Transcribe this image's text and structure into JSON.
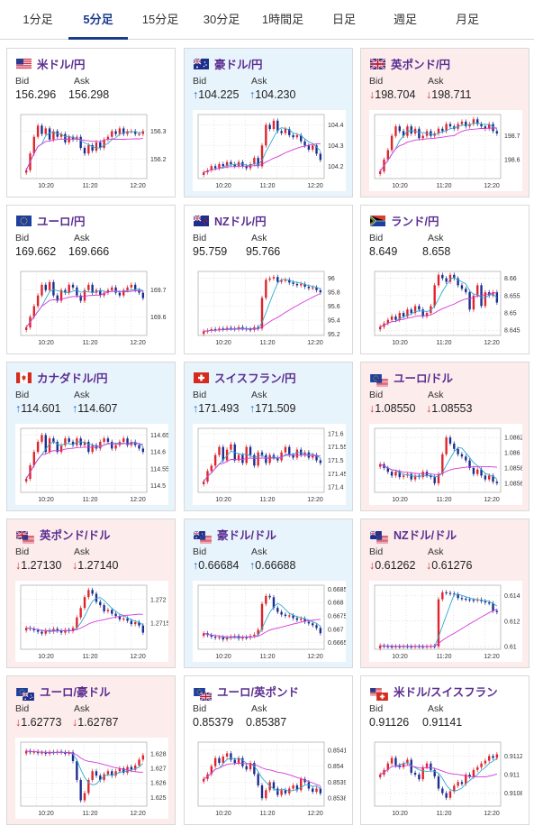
{
  "tabs": [
    {
      "label": "1分足",
      "active": false
    },
    {
      "label": "5分足",
      "active": true
    },
    {
      "label": "15分足",
      "active": false
    },
    {
      "label": "30分足",
      "active": false
    },
    {
      "label": "1時間足",
      "active": false
    },
    {
      "label": "日足",
      "active": false
    },
    {
      "label": "週足",
      "active": false
    },
    {
      "label": "月足",
      "active": false
    }
  ],
  "labels": {
    "bid": "Bid",
    "ask": "Ask"
  },
  "colors": {
    "title": "#5b2d91",
    "up": "#1a6fd0",
    "down": "#d0332b",
    "candle_up": "#e0242b",
    "candle_down": "#1b2d8f",
    "ma_short": "#2eaad0",
    "ma_long": "#d43ad8",
    "tab_active": "#1a3c8c"
  },
  "cards": [
    {
      "name": "米ドル/円",
      "flags": [
        "us"
      ],
      "direction": "none",
      "bid": "156.296",
      "ask": "156.298",
      "chart_data": {
        "type": "candlestick",
        "x_ticks": [
          "10:20",
          "11:20",
          "12:20"
        ],
        "y_ticks": [
          "156.3",
          "156.2"
        ],
        "ylim": [
          156.13,
          156.36
        ],
        "closes": [
          156.16,
          156.22,
          156.28,
          156.32,
          156.29,
          156.31,
          156.27,
          156.3,
          156.28,
          156.29,
          156.26,
          156.28,
          156.27,
          156.28,
          156.24,
          156.22,
          156.25,
          156.23,
          156.26,
          156.24,
          156.27,
          156.28,
          156.3,
          156.29,
          156.31,
          156.29,
          156.3,
          156.3,
          156.29,
          156.29,
          156.3
        ]
      }
    },
    {
      "name": "豪ドル/円",
      "flags": [
        "au"
      ],
      "direction": "up",
      "bid": "104.225",
      "ask": "104.230",
      "chart_data": {
        "type": "candlestick",
        "x_ticks": [
          "10:20",
          "11:20",
          "12:20"
        ],
        "y_ticks": [
          "104.4",
          "104.3",
          "104.2"
        ],
        "ylim": [
          104.14,
          104.45
        ],
        "closes": [
          104.17,
          104.18,
          104.2,
          104.19,
          104.21,
          104.2,
          104.22,
          104.21,
          104.2,
          104.22,
          104.2,
          104.19,
          104.21,
          104.24,
          104.2,
          104.3,
          104.4,
          104.38,
          104.42,
          104.37,
          104.36,
          104.38,
          104.35,
          104.34,
          104.35,
          104.32,
          104.3,
          104.28,
          104.3,
          104.26,
          104.23
        ]
      }
    },
    {
      "name": "英ポンド/円",
      "flags": [
        "uk"
      ],
      "direction": "down",
      "bid": "198.704",
      "ask": "198.711",
      "chart_data": {
        "type": "candlestick",
        "x_ticks": [
          "10:20",
          "11:20",
          "12:20"
        ],
        "y_ticks": [
          "198.7",
          "198.6"
        ],
        "ylim": [
          198.52,
          198.79
        ],
        "closes": [
          198.55,
          198.6,
          198.64,
          198.7,
          198.74,
          198.72,
          198.7,
          198.74,
          198.71,
          198.73,
          198.69,
          198.7,
          198.72,
          198.7,
          198.71,
          198.73,
          198.72,
          198.75,
          198.74,
          198.73,
          198.75,
          198.76,
          198.74,
          198.75,
          198.77,
          198.75,
          198.74,
          198.73,
          198.75,
          198.72,
          198.71
        ]
      }
    },
    {
      "name": "ユーロ/円",
      "flags": [
        "eu"
      ],
      "direction": "none",
      "bid": "169.662",
      "ask": "169.666",
      "chart_data": {
        "type": "candlestick",
        "x_ticks": [
          "10:20",
          "11:20",
          "12:20"
        ],
        "y_ticks": [
          "169.7",
          "169.6"
        ],
        "ylim": [
          169.53,
          169.77
        ],
        "closes": [
          169.56,
          169.6,
          169.64,
          169.68,
          169.72,
          169.7,
          169.73,
          169.68,
          169.66,
          169.7,
          169.69,
          169.72,
          169.71,
          169.68,
          169.66,
          169.7,
          169.72,
          169.69,
          169.7,
          169.68,
          169.69,
          169.7,
          169.71,
          169.69,
          169.68,
          169.7,
          169.71,
          169.72,
          169.7,
          169.69,
          169.67
        ]
      }
    },
    {
      "name": "NZドル/円",
      "flags": [
        "nz"
      ],
      "direction": "none",
      "bid": "95.759",
      "ask": "95.766",
      "chart_data": {
        "type": "candlestick",
        "x_ticks": [
          "10:20",
          "11:20",
          "12:20"
        ],
        "y_ticks": [
          "96",
          "95.8",
          "95.6",
          "95.4",
          "95.2"
        ],
        "ylim": [
          95.18,
          96.1
        ],
        "closes": [
          95.24,
          95.25,
          95.27,
          95.26,
          95.28,
          95.27,
          95.29,
          95.28,
          95.27,
          95.3,
          95.28,
          95.27,
          95.26,
          95.3,
          95.28,
          95.72,
          95.98,
          96.0,
          96.02,
          95.95,
          95.97,
          95.98,
          95.94,
          95.92,
          95.9,
          95.92,
          95.88,
          95.86,
          95.87,
          95.83,
          95.8
        ]
      }
    },
    {
      "name": "ランド/円",
      "flags": [
        "za"
      ],
      "direction": "none",
      "bid": "8.649",
      "ask": "8.658",
      "chart_data": {
        "type": "candlestick",
        "x_ticks": [
          "10:20",
          "11:20",
          "12:20"
        ],
        "y_ticks": [
          "8.66",
          "8.655",
          "8.65",
          "8.645"
        ],
        "ylim": [
          8.6435,
          8.662
        ],
        "closes": [
          8.646,
          8.647,
          8.648,
          8.649,
          8.648,
          8.65,
          8.649,
          8.651,
          8.65,
          8.652,
          8.651,
          8.649,
          8.65,
          8.652,
          8.658,
          8.661,
          8.66,
          8.659,
          8.661,
          8.66,
          8.658,
          8.657,
          8.656,
          8.651,
          8.655,
          8.658,
          8.652,
          8.656,
          8.655,
          8.656,
          8.653
        ]
      }
    },
    {
      "name": "カナダドル/円",
      "flags": [
        "ca"
      ],
      "direction": "up",
      "bid": "114.601",
      "ask": "114.607",
      "chart_data": {
        "type": "candlestick",
        "x_ticks": [
          "10:20",
          "11:20",
          "12:20"
        ],
        "y_ticks": [
          "114.65",
          "114.6",
          "114.55",
          "114.5"
        ],
        "ylim": [
          114.48,
          114.67
        ],
        "closes": [
          114.52,
          114.56,
          114.6,
          114.63,
          114.65,
          114.6,
          114.64,
          114.63,
          114.6,
          114.62,
          114.64,
          114.63,
          114.62,
          114.64,
          114.62,
          114.63,
          114.6,
          114.62,
          114.61,
          114.63,
          114.64,
          114.63,
          114.61,
          114.62,
          114.63,
          114.64,
          114.62,
          114.63,
          114.62,
          114.61,
          114.6
        ]
      }
    },
    {
      "name": "スイスフラン/円",
      "flags": [
        "ch"
      ],
      "direction": "up",
      "bid": "171.493",
      "ask": "171.509",
      "chart_data": {
        "type": "candlestick",
        "x_ticks": [
          "10:20",
          "11:20",
          "12:20"
        ],
        "y_ticks": [
          "171.6",
          "171.55",
          "171.5",
          "171.45",
          "171.4"
        ],
        "ylim": [
          171.38,
          171.62
        ],
        "closes": [
          171.42,
          171.46,
          171.48,
          171.52,
          171.55,
          171.5,
          171.54,
          171.56,
          171.5,
          171.52,
          171.49,
          171.55,
          171.52,
          171.48,
          171.53,
          171.52,
          171.49,
          171.52,
          171.51,
          171.5,
          171.53,
          171.55,
          171.52,
          171.51,
          171.54,
          171.52,
          171.53,
          171.51,
          171.52,
          171.5,
          171.49
        ]
      }
    },
    {
      "name": "ユーロ/ドル",
      "flags": [
        "eu",
        "us"
      ],
      "direction": "down",
      "bid": "1.08550",
      "ask": "1.08553",
      "chart_data": {
        "type": "candlestick",
        "x_ticks": [
          "10:20",
          "11:20",
          "12:20"
        ],
        "y_ticks": [
          "1.0862",
          "1.086",
          "1.0858",
          "1.0856"
        ],
        "ylim": [
          1.08548,
          1.08632
        ],
        "closes": [
          1.08585,
          1.0858,
          1.08575,
          1.0857,
          1.08575,
          1.08568,
          1.0857,
          1.08572,
          1.08565,
          1.0857,
          1.08568,
          1.08575,
          1.0857,
          1.08568,
          1.0856,
          1.08572,
          1.08598,
          1.0862,
          1.08612,
          1.08605,
          1.08598,
          1.08595,
          1.0859,
          1.0858,
          1.08572,
          1.08578,
          1.0857,
          1.08565,
          1.0857,
          1.08562,
          1.0856
        ]
      }
    },
    {
      "name": "英ポンド/ドル",
      "flags": [
        "uk",
        "us"
      ],
      "direction": "down",
      "bid": "1.27130",
      "ask": "1.27140",
      "chart_data": {
        "type": "candlestick",
        "x_ticks": [
          "10:20",
          "11:20",
          "12:20"
        ],
        "y_ticks": [
          "1.272",
          "1.2715"
        ],
        "ylim": [
          1.27095,
          1.2723
        ],
        "closes": [
          1.2714,
          1.27138,
          1.27135,
          1.27132,
          1.27128,
          1.27135,
          1.27132,
          1.27138,
          1.27134,
          1.2713,
          1.27136,
          1.27133,
          1.2714,
          1.27162,
          1.27182,
          1.27205,
          1.2722,
          1.27212,
          1.27195,
          1.27188,
          1.27175,
          1.27178,
          1.2717,
          1.27165,
          1.27158,
          1.2716,
          1.27155,
          1.27148,
          1.27152,
          1.27145,
          1.2713
        ]
      }
    },
    {
      "name": "豪ドル/ドル",
      "flags": [
        "au",
        "us"
      ],
      "direction": "up",
      "bid": "0.66684",
      "ask": "0.66688",
      "chart_data": {
        "type": "candlestick",
        "x_ticks": [
          "10:20",
          "11:20",
          "12:20"
        ],
        "y_ticks": [
          "0.6685",
          "0.668",
          "0.6675",
          "0.667",
          "0.6665"
        ],
        "ylim": [
          0.66625,
          0.66865
        ],
        "closes": [
          0.66685,
          0.66678,
          0.66672,
          0.66668,
          0.6667,
          0.66662,
          0.66668,
          0.66672,
          0.66675,
          0.66665,
          0.6667,
          0.66668,
          0.66675,
          0.6668,
          0.66698,
          0.66795,
          0.66825,
          0.6682,
          0.6678,
          0.66765,
          0.66755,
          0.6675,
          0.66752,
          0.66742,
          0.66735,
          0.6674,
          0.66728,
          0.66722,
          0.66715,
          0.66705,
          0.66685
        ]
      }
    },
    {
      "name": "NZドル/ドル",
      "flags": [
        "nz",
        "us"
      ],
      "direction": "down",
      "bid": "0.61262",
      "ask": "0.61276",
      "chart_data": {
        "type": "candlestick",
        "x_ticks": [
          "10:20",
          "11:20",
          "12:20"
        ],
        "y_ticks": [
          "0.614",
          "0.612",
          "0.61"
        ],
        "ylim": [
          0.6098,
          0.6148
        ],
        "closes": [
          0.61008,
          0.61005,
          0.61002,
          0.61,
          0.61003,
          0.61001,
          0.61004,
          0.61002,
          0.61,
          0.61004,
          0.61002,
          0.61,
          0.61003,
          0.61005,
          0.61003,
          0.6137,
          0.61425,
          0.6142,
          0.61415,
          0.6141,
          0.6138,
          0.61375,
          0.6137,
          0.61365,
          0.6136,
          0.61368,
          0.61355,
          0.61345,
          0.6134,
          0.6128,
          0.6127
        ]
      }
    },
    {
      "name": "ユーロ/豪ドル",
      "flags": [
        "eu",
        "au"
      ],
      "direction": "down",
      "bid": "1.62773",
      "ask": "1.62787",
      "chart_data": {
        "type": "candlestick",
        "x_ticks": [
          "10:20",
          "11:20",
          "12:20"
        ],
        "y_ticks": [
          "1.628",
          "1.627",
          "1.626",
          "1.625"
        ],
        "ylim": [
          1.6244,
          1.6288
        ],
        "closes": [
          1.6282,
          1.6281,
          1.62815,
          1.62805,
          1.6281,
          1.628,
          1.62812,
          1.62808,
          1.62815,
          1.6281,
          1.628,
          1.6281,
          1.6275,
          1.6262,
          1.6248,
          1.6253,
          1.6262,
          1.6268,
          1.6265,
          1.6262,
          1.6266,
          1.6268,
          1.6265,
          1.6268,
          1.627,
          1.6267,
          1.6271,
          1.6269,
          1.6272,
          1.6276,
          1.6279
        ]
      }
    },
    {
      "name": "ユーロ/英ポンド",
      "flags": [
        "eu",
        "uk"
      ],
      "direction": "none",
      "bid": "0.85379",
      "ask": "0.85387",
      "chart_data": {
        "type": "candlestick",
        "x_ticks": [
          "10:20",
          "11:20",
          "12:20"
        ],
        "y_ticks": [
          "0.8541",
          "0.854",
          "0.8539",
          "0.8538"
        ],
        "ylim": [
          0.85375,
          0.85415
        ],
        "closes": [
          0.85392,
          0.85395,
          0.854,
          0.85405,
          0.85402,
          0.85406,
          0.85408,
          0.85404,
          0.85402,
          0.85405,
          0.854,
          0.85398,
          0.85402,
          0.85395,
          0.85388,
          0.8538,
          0.85385,
          0.8539,
          0.85386,
          0.85382,
          0.85385,
          0.85383,
          0.85386,
          0.85388,
          0.85385,
          0.85392,
          0.8539,
          0.85386,
          0.85384,
          0.85386,
          0.85383
        ]
      }
    },
    {
      "name": "米ドル/スイスフラン",
      "flags": [
        "us",
        "ch"
      ],
      "direction": "none",
      "bid": "0.91126",
      "ask": "0.91141",
      "chart_data": {
        "type": "candlestick",
        "x_ticks": [
          "10:20",
          "11:20",
          "12:20"
        ],
        "y_ticks": [
          "0.9112",
          "0.911",
          "0.9108"
        ],
        "ylim": [
          0.91066,
          0.91135
        ],
        "closes": [
          0.911,
          0.91105,
          0.91112,
          0.91118,
          0.9111,
          0.91108,
          0.91112,
          0.91116,
          0.91102,
          0.911,
          0.91095,
          0.91108,
          0.91112,
          0.91105,
          0.91098,
          0.91085,
          0.9108,
          0.91075,
          0.91082,
          0.91088,
          0.91092,
          0.9109,
          0.911,
          0.91098,
          0.91105,
          0.91108,
          0.91112,
          0.91115,
          0.9112,
          0.91118,
          0.91122
        ]
      }
    }
  ]
}
